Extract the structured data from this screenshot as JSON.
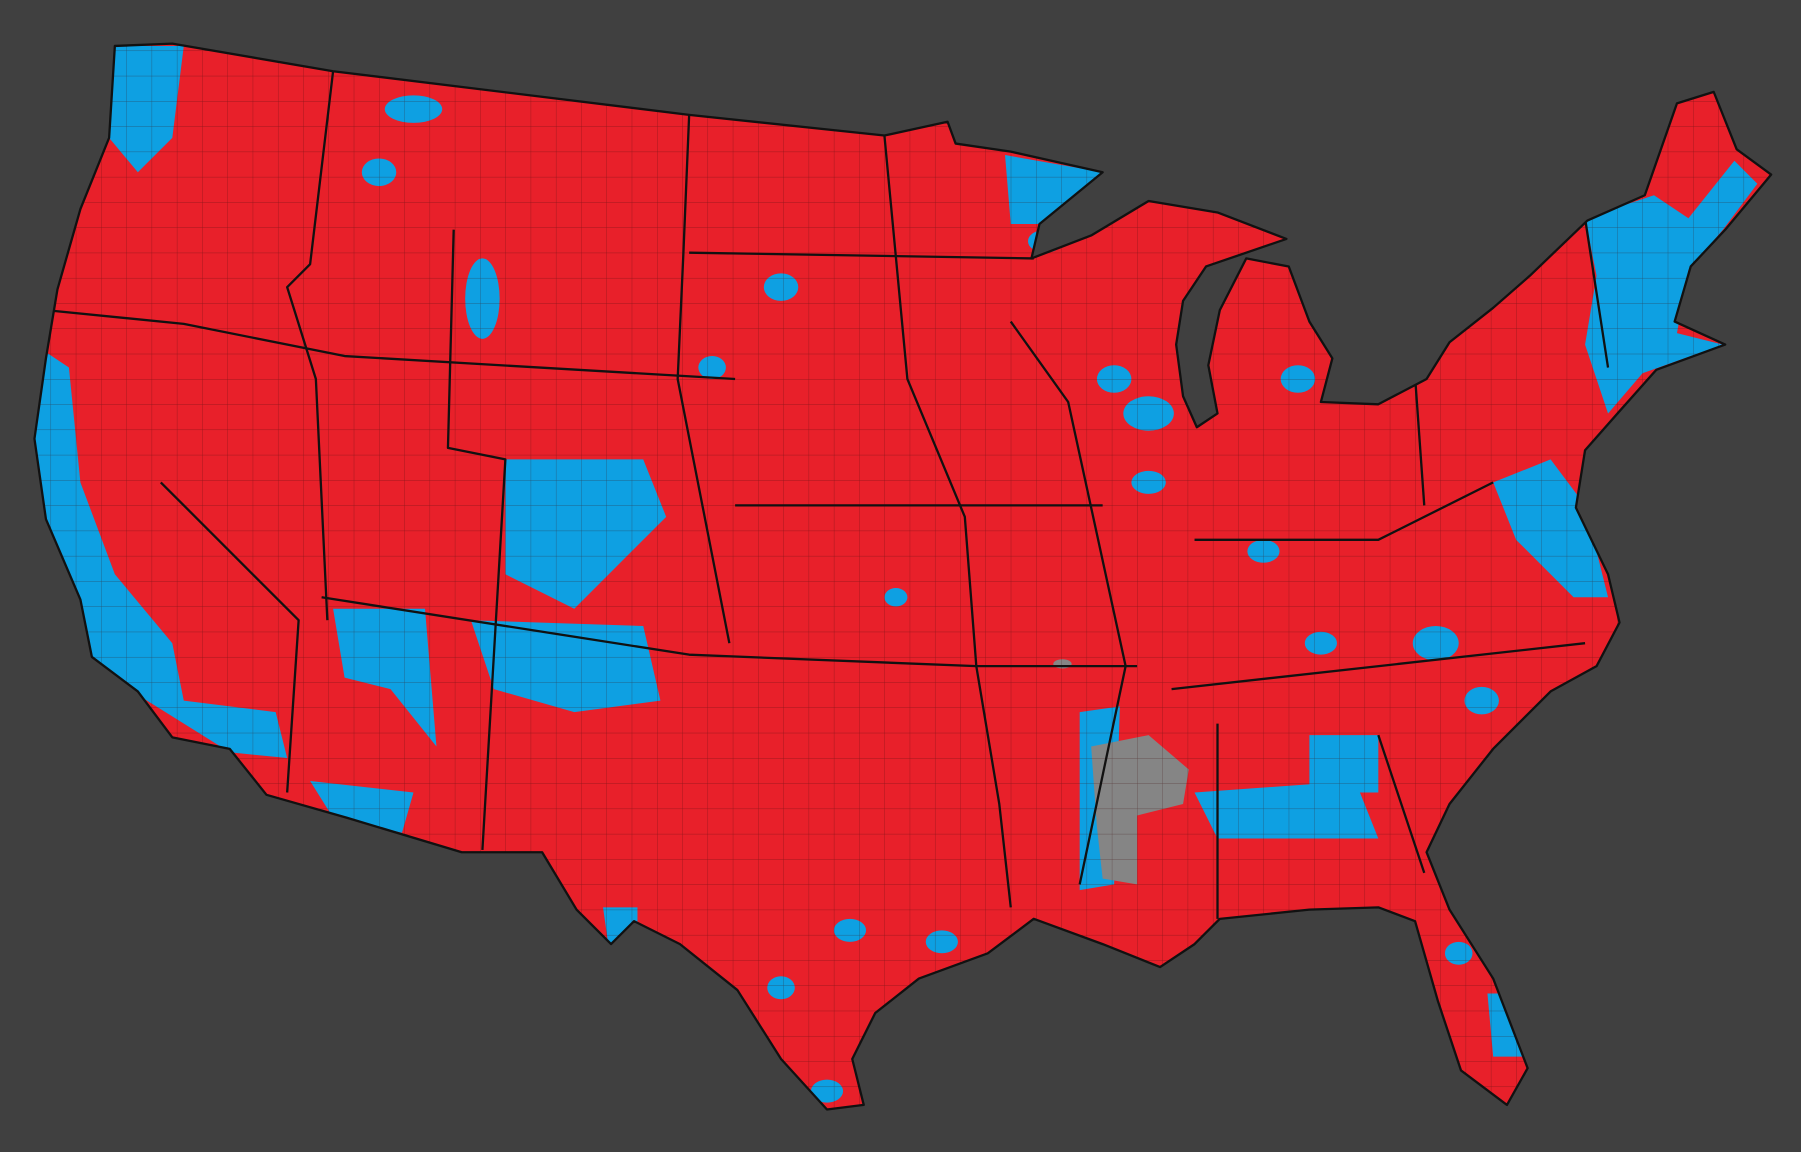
{
  "map": {
    "region": "contiguous-united-states",
    "level": "county",
    "colors": {
      "background": "#404040",
      "red": "#e8202a",
      "blue": "#0ea0e2",
      "gray": "#858585",
      "border": "#111111"
    },
    "categories": [
      "red",
      "blue",
      "gray"
    ]
  }
}
